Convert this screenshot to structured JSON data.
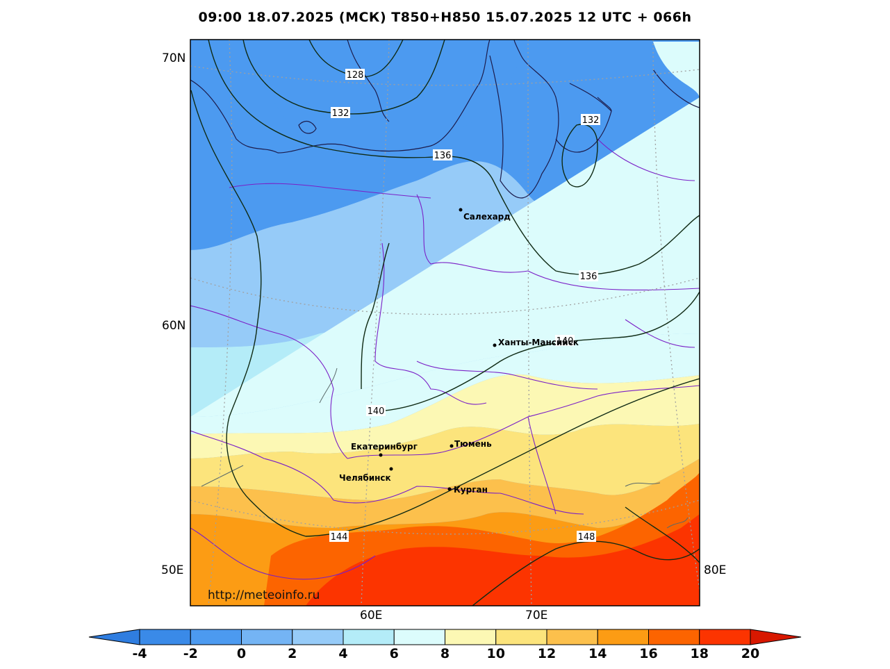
{
  "title": "09:00 18.07.2025 (МСК) T850+H850 15.07.2025 12 UTC + 066h",
  "watermark": "http://meteoinfo.ru",
  "lat_labels": [
    "70N",
    "60N",
    "50E"
  ],
  "lon_labels": [
    "60E",
    "70E",
    "80E"
  ],
  "cities": [
    {
      "name": "Салехард"
    },
    {
      "name": "Ханты-Мансийск"
    },
    {
      "name": "Екатеринбург"
    },
    {
      "name": "Тюмень"
    },
    {
      "name": "Челябинск"
    },
    {
      "name": "Курган"
    }
  ],
  "contour_labels": [
    "128",
    "132",
    "136",
    "132",
    "136",
    "140",
    "140",
    "144",
    "148"
  ],
  "colorbar": {
    "ticks": [
      "-4",
      "-2",
      "0",
      "2",
      "4",
      "6",
      "8",
      "10",
      "12",
      "14",
      "16",
      "18",
      "20"
    ],
    "colors": [
      "#3a8ae8",
      "#4c9af0",
      "#74b4f4",
      "#96cbf8",
      "#b4ecf8",
      "#dcfcfc",
      "#fcf8b4",
      "#fce47c",
      "#fcc04c",
      "#fc9c14",
      "#fc6400",
      "#fc3400"
    ],
    "under_color": "#2f7de0",
    "over_color": "#d81800"
  },
  "palette": {
    "t_m2": "#4c9af0",
    "t0": "#74b4f4",
    "t2": "#96cbf8",
    "t4": "#b4ecf8",
    "t6": "#dcfcfc",
    "t8": "#fcf8b4",
    "t10": "#fce47c",
    "t12": "#fcc04c",
    "t14": "#fc9c14",
    "t16": "#fc6400",
    "t18": "#fc3400",
    "t20": "#e82000"
  }
}
